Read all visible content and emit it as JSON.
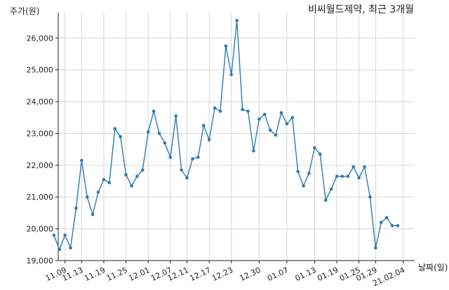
{
  "chart_data": {
    "type": "line",
    "title": "비씨월드제약, 최근 3개월",
    "ylabel": "주가(원)",
    "xlabel": "날짜(일)",
    "ylim": [
      19000,
      26800
    ],
    "yticks": [
      19000,
      20000,
      21000,
      22000,
      23000,
      24000,
      25000,
      26000
    ],
    "ytick_labels": [
      "19,000",
      "20,000",
      "21,000",
      "22,000",
      "23,000",
      "24,000",
      "25,000",
      "26,000"
    ],
    "xtick_labels": [
      "11.09",
      "11.13",
      "11.19",
      "11.25",
      "12.01",
      "12.07",
      "12.11",
      "12.17",
      "12.23",
      "12.30",
      "01.07",
      "01.13",
      "01.19",
      "01.25",
      "01.29",
      "21.02.04"
    ],
    "xtick_index": [
      2,
      5,
      9,
      13,
      17,
      21,
      24,
      28,
      32,
      37,
      42,
      47,
      51,
      55,
      58,
      63
    ],
    "grid": true,
    "color": "#2e7ab0",
    "series": [
      {
        "values": [
          19800,
          19350,
          19800,
          19400,
          20650,
          22150,
          21000,
          20450,
          21150,
          21550,
          21450,
          23150,
          22900,
          21700,
          21350,
          21650,
          21850,
          23050,
          23700,
          23000,
          22700,
          22250,
          23550,
          21850,
          21600,
          22200,
          22250,
          23250,
          22800,
          23800,
          23700,
          25750,
          24850,
          26550,
          23750,
          23700,
          22450,
          23450,
          23600,
          23100,
          22950,
          23650,
          23300,
          23500,
          21800,
          21350,
          21750,
          22550,
          22350,
          20900,
          21250,
          21650,
          21650,
          21650,
          21950,
          21600,
          21950,
          21000,
          19400,
          20200,
          20350,
          20100,
          20100
        ]
      }
    ]
  }
}
